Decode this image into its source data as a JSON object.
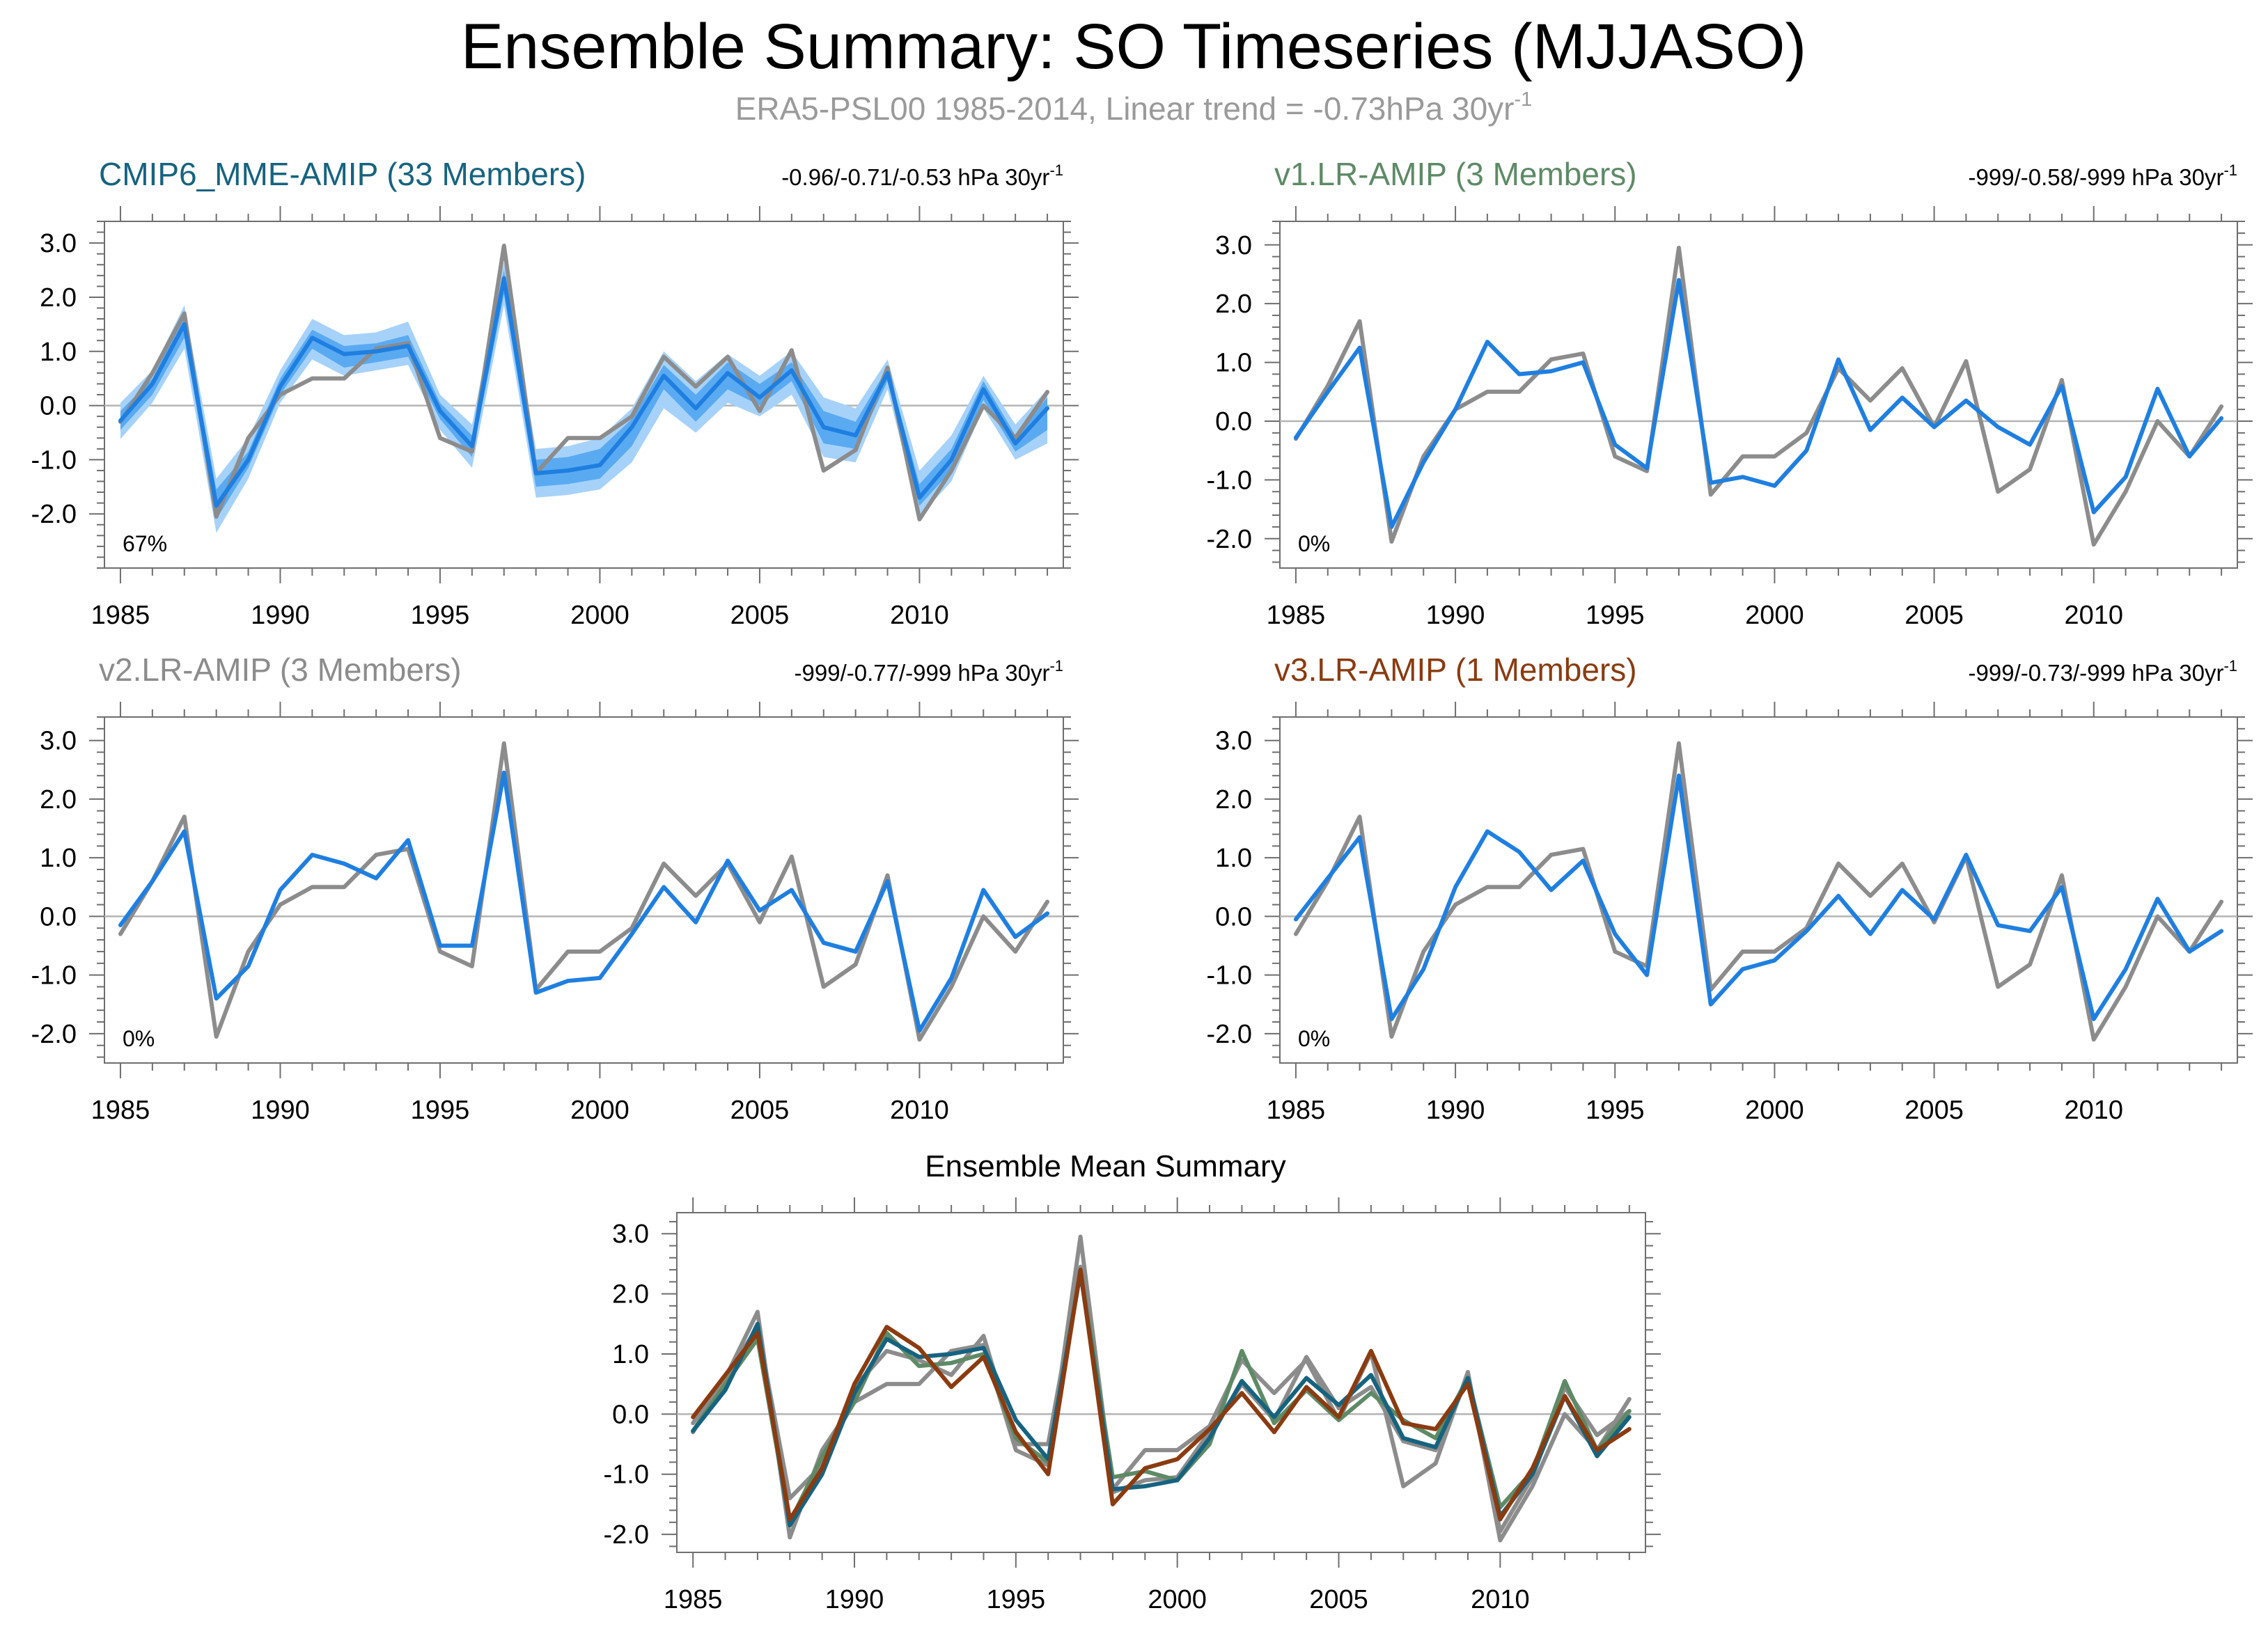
{
  "title": "Ensemble Summary: SO Timeseries (MJJASO)",
  "subtitle": {
    "prefix": "ERA5-PSL00 1985-2014, Linear trend = -0.73hPa 30yr",
    "sup": "-1"
  },
  "colors": {
    "obs": "#8c8c8c",
    "model": "#1f7fe0",
    "band_outer": "#a6d2fa",
    "band_inner": "#5aaaf2",
    "zero_line": "#b4b4b4",
    "frame": "#6e6e6e",
    "cmip6": "#16637f",
    "v1": "#5e8a66",
    "v2": "#8c8c8c",
    "v3": "#8a3b10",
    "subtitle": "#9a9a9a"
  },
  "chart_data": [
    {
      "type": "line",
      "id": "cmip6",
      "title": "CMIP6_MME-AMIP (33 Members)",
      "title_color_key": "cmip6",
      "trend": {
        "text": "-0.96/-0.71/-0.53 hPa 30yr",
        "sup": "-1"
      },
      "pct_label": "67%",
      "x": [
        1985,
        1986,
        1987,
        1988,
        1989,
        1990,
        1991,
        1992,
        1993,
        1994,
        1995,
        1996,
        1997,
        1998,
        1999,
        2000,
        2001,
        2002,
        2003,
        2004,
        2005,
        2006,
        2007,
        2008,
        2009,
        2010,
        2011,
        2012,
        2013,
        2014
      ],
      "xticks": [
        1985,
        1990,
        1995,
        2000,
        2005,
        2010
      ],
      "yticks": [
        -2.0,
        -1.0,
        0.0,
        1.0,
        2.0,
        3.0
      ],
      "ytick_labels": [
        "-2.0",
        "-1.0",
        "0.0",
        "1.0",
        "2.0",
        "3.0"
      ],
      "ylim": [
        -3.0,
        3.4
      ],
      "has_band": true,
      "band_outer_low": [
        -0.62,
        0.05,
        1.05,
        -2.35,
        -1.35,
        0.05,
        0.85,
        0.55,
        0.65,
        0.75,
        -0.45,
        -1.15,
        1.85,
        -1.7,
        -1.65,
        -1.55,
        -1.05,
        -0.05,
        -0.5,
        0.05,
        -0.2,
        0.2,
        -0.95,
        -1.05,
        0.3,
        -2.05,
        -1.4,
        -0.05,
        -1.0,
        -0.7
      ],
      "band_outer_high": [
        0.05,
        0.65,
        1.85,
        -1.35,
        -0.6,
        0.65,
        1.6,
        1.3,
        1.35,
        1.55,
        0.2,
        -0.35,
        2.65,
        -0.8,
        -0.75,
        -0.6,
        -0.05,
        1.0,
        0.45,
        0.95,
        0.55,
        1.0,
        0.15,
        -0.05,
        0.85,
        -1.2,
        -0.55,
        0.55,
        -0.35,
        0.3
      ],
      "band_inner_low": [
        -0.45,
        0.2,
        1.25,
        -2.1,
        -1.15,
        0.2,
        1.05,
        0.7,
        0.8,
        0.9,
        -0.25,
        -0.95,
        2.05,
        -1.5,
        -1.45,
        -1.35,
        -0.75,
        0.3,
        -0.3,
        0.3,
        0.0,
        0.45,
        -0.7,
        -0.8,
        0.45,
        -1.85,
        -1.2,
        0.1,
        -0.85,
        -0.45
      ],
      "band_inner_high": [
        -0.1,
        0.5,
        1.65,
        -1.55,
        -0.85,
        0.5,
        1.4,
        1.1,
        1.15,
        1.3,
        0.05,
        -0.55,
        2.5,
        -1.0,
        -0.95,
        -0.8,
        -0.25,
        0.75,
        0.2,
        0.8,
        0.4,
        0.8,
        -0.1,
        -0.3,
        0.7,
        -1.45,
        -0.8,
        0.45,
        -0.55,
        0.15
      ],
      "series": [
        {
          "name": "ERA5-PSL00",
          "color_key": "obs",
          "values": [
            -0.3,
            0.6,
            1.7,
            -2.05,
            -0.6,
            0.2,
            0.5,
            0.5,
            1.05,
            1.15,
            -0.6,
            -0.85,
            2.95,
            -1.25,
            -0.6,
            -0.6,
            -0.2,
            0.9,
            0.35,
            0.9,
            -0.1,
            1.02,
            -1.2,
            -0.82,
            0.7,
            -2.1,
            -1.2,
            0.0,
            -0.6,
            0.25
          ]
        },
        {
          "name": "CMIP6_MME-AMIP",
          "color_key": "model",
          "values": [
            -0.28,
            0.4,
            1.5,
            -1.85,
            -1.0,
            0.35,
            1.25,
            0.95,
            1.0,
            1.1,
            -0.1,
            -0.75,
            2.35,
            -1.25,
            -1.2,
            -1.1,
            -0.4,
            0.55,
            -0.05,
            0.6,
            0.15,
            0.65,
            -0.4,
            -0.55,
            0.6,
            -1.7,
            -1.0,
            0.3,
            -0.7,
            -0.05
          ]
        }
      ]
    },
    {
      "type": "line",
      "id": "v1",
      "title": "v1.LR-AMIP (3 Members)",
      "title_color_key": "v1",
      "trend": {
        "text": "-999/-0.58/-999 hPa 30yr",
        "sup": "-1"
      },
      "pct_label": "0%",
      "x": [
        1985,
        1986,
        1987,
        1988,
        1989,
        1990,
        1991,
        1992,
        1993,
        1994,
        1995,
        1996,
        1997,
        1998,
        1999,
        2000,
        2001,
        2002,
        2003,
        2004,
        2005,
        2006,
        2007,
        2008,
        2009,
        2010,
        2011,
        2012,
        2013,
        2014
      ],
      "xticks": [
        1985,
        1990,
        1995,
        2000,
        2005,
        2010
      ],
      "yticks": [
        -2.0,
        -1.0,
        0.0,
        1.0,
        2.0,
        3.0
      ],
      "ytick_labels": [
        "-2.0",
        "-1.0",
        "0.0",
        "1.0",
        "2.0",
        "3.0"
      ],
      "ylim": [
        -2.5,
        3.4
      ],
      "has_band": false,
      "series": [
        {
          "name": "ERA5-PSL00",
          "color_key": "obs",
          "values": [
            -0.3,
            0.6,
            1.7,
            -2.05,
            -0.6,
            0.2,
            0.5,
            0.5,
            1.05,
            1.15,
            -0.6,
            -0.85,
            2.95,
            -1.25,
            -0.6,
            -0.6,
            -0.2,
            0.9,
            0.35,
            0.9,
            -0.1,
            1.02,
            -1.2,
            -0.82,
            0.7,
            -2.1,
            -1.2,
            0.0,
            -0.6,
            0.25
          ]
        },
        {
          "name": "v1.LR-AMIP",
          "color_key": "model",
          "values": [
            -0.28,
            0.5,
            1.25,
            -1.8,
            -0.7,
            0.2,
            1.35,
            0.8,
            0.85,
            1.0,
            -0.4,
            -0.8,
            2.4,
            -1.05,
            -0.95,
            -1.1,
            -0.5,
            1.05,
            -0.15,
            0.4,
            -0.1,
            0.35,
            -0.1,
            -0.4,
            0.6,
            -1.55,
            -0.95,
            0.55,
            -0.6,
            0.05
          ]
        }
      ]
    },
    {
      "type": "line",
      "id": "v2",
      "title": "v2.LR-AMIP (3 Members)",
      "title_color_key": "v2",
      "trend": {
        "text": "-999/-0.77/-999 hPa 30yr",
        "sup": "-1"
      },
      "pct_label": "0%",
      "x": [
        1985,
        1986,
        1987,
        1988,
        1989,
        1990,
        1991,
        1992,
        1993,
        1994,
        1995,
        1996,
        1997,
        1998,
        1999,
        2000,
        2001,
        2002,
        2003,
        2004,
        2005,
        2006,
        2007,
        2008,
        2009,
        2010,
        2011,
        2012,
        2013,
        2014
      ],
      "xticks": [
        1985,
        1990,
        1995,
        2000,
        2005,
        2010
      ],
      "yticks": [
        -2.0,
        -1.0,
        0.0,
        1.0,
        2.0,
        3.0
      ],
      "ytick_labels": [
        "-2.0",
        "-1.0",
        "0.0",
        "1.0",
        "2.0",
        "3.0"
      ],
      "ylim": [
        -2.5,
        3.4
      ],
      "has_band": false,
      "series": [
        {
          "name": "ERA5-PSL00",
          "color_key": "obs",
          "values": [
            -0.3,
            0.6,
            1.7,
            -2.05,
            -0.6,
            0.2,
            0.5,
            0.5,
            1.05,
            1.15,
            -0.6,
            -0.85,
            2.95,
            -1.25,
            -0.6,
            -0.6,
            -0.2,
            0.9,
            0.35,
            0.9,
            -0.1,
            1.02,
            -1.2,
            -0.82,
            0.7,
            -2.1,
            -1.2,
            0.0,
            -0.6,
            0.25
          ]
        },
        {
          "name": "v2.LR-AMIP",
          "color_key": "model",
          "values": [
            -0.15,
            0.6,
            1.45,
            -1.4,
            -0.85,
            0.45,
            1.05,
            0.9,
            0.65,
            1.3,
            -0.5,
            -0.5,
            2.45,
            -1.3,
            -1.1,
            -1.05,
            -0.3,
            0.5,
            -0.1,
            0.95,
            0.1,
            0.45,
            -0.45,
            -0.6,
            0.6,
            -1.95,
            -1.05,
            0.45,
            -0.35,
            0.05
          ]
        }
      ]
    },
    {
      "type": "line",
      "id": "v3",
      "title": "v3.LR-AMIP (1 Members)",
      "title_color_key": "v3",
      "trend": {
        "text": "-999/-0.73/-999 hPa 30yr",
        "sup": "-1"
      },
      "pct_label": "0%",
      "x": [
        1985,
        1986,
        1987,
        1988,
        1989,
        1990,
        1991,
        1992,
        1993,
        1994,
        1995,
        1996,
        1997,
        1998,
        1999,
        2000,
        2001,
        2002,
        2003,
        2004,
        2005,
        2006,
        2007,
        2008,
        2009,
        2010,
        2011,
        2012,
        2013,
        2014
      ],
      "xticks": [
        1985,
        1990,
        1995,
        2000,
        2005,
        2010
      ],
      "yticks": [
        -2.0,
        -1.0,
        0.0,
        1.0,
        2.0,
        3.0
      ],
      "ytick_labels": [
        "-2.0",
        "-1.0",
        "0.0",
        "1.0",
        "2.0",
        "3.0"
      ],
      "ylim": [
        -2.5,
        3.4
      ],
      "has_band": false,
      "series": [
        {
          "name": "ERA5-PSL00",
          "color_key": "obs",
          "values": [
            -0.3,
            0.6,
            1.7,
            -2.05,
            -0.6,
            0.2,
            0.5,
            0.5,
            1.05,
            1.15,
            -0.6,
            -0.85,
            2.95,
            -1.25,
            -0.6,
            -0.6,
            -0.2,
            0.9,
            0.35,
            0.9,
            -0.1,
            1.02,
            -1.2,
            -0.82,
            0.7,
            -2.1,
            -1.2,
            0.0,
            -0.6,
            0.25
          ]
        },
        {
          "name": "v3.LR-AMIP",
          "color_key": "model",
          "values": [
            -0.05,
            0.65,
            1.35,
            -1.75,
            -0.9,
            0.5,
            1.45,
            1.1,
            0.45,
            0.95,
            -0.3,
            -1.0,
            2.4,
            -1.5,
            -0.9,
            -0.75,
            -0.25,
            0.35,
            -0.3,
            0.45,
            -0.05,
            1.05,
            -0.15,
            -0.25,
            0.5,
            -1.75,
            -0.9,
            0.3,
            -0.6,
            -0.25
          ]
        }
      ]
    },
    {
      "type": "line",
      "id": "mean",
      "title": "Ensemble Mean Summary",
      "x": [
        1985,
        1986,
        1987,
        1988,
        1989,
        1990,
        1991,
        1992,
        1993,
        1994,
        1995,
        1996,
        1997,
        1998,
        1999,
        2000,
        2001,
        2002,
        2003,
        2004,
        2005,
        2006,
        2007,
        2008,
        2009,
        2010,
        2011,
        2012,
        2013,
        2014
      ],
      "xticks": [
        1985,
        1990,
        1995,
        2000,
        2005,
        2010
      ],
      "yticks": [
        -2.0,
        -1.0,
        0.0,
        1.0,
        2.0,
        3.0
      ],
      "ytick_labels": [
        "-2.0",
        "-1.0",
        "0.0",
        "1.0",
        "2.0",
        "3.0"
      ],
      "ylim": [
        -2.3,
        3.35
      ],
      "has_band": false,
      "series": [
        {
          "name": "ERA5-PSL00",
          "color_key": "obs",
          "values": [
            -0.3,
            0.6,
            1.7,
            -2.05,
            -0.6,
            0.2,
            0.5,
            0.5,
            1.05,
            1.15,
            -0.6,
            -0.85,
            2.95,
            -1.25,
            -0.6,
            -0.6,
            -0.2,
            0.9,
            0.35,
            0.9,
            -0.1,
            1.02,
            -1.2,
            -0.82,
            0.7,
            -2.1,
            -1.2,
            0.0,
            -0.6,
            0.25
          ]
        },
        {
          "name": "v2.LR-AMIP",
          "color_key": "v2",
          "values": [
            -0.15,
            0.6,
            1.45,
            -1.4,
            -0.85,
            0.45,
            1.05,
            0.9,
            0.65,
            1.3,
            -0.5,
            -0.5,
            2.45,
            -1.3,
            -1.1,
            -1.05,
            -0.3,
            0.5,
            -0.1,
            0.95,
            0.1,
            0.45,
            -0.45,
            -0.6,
            0.6,
            -1.95,
            -1.05,
            0.45,
            -0.35,
            0.05
          ]
        },
        {
          "name": "v1.LR-AMIP",
          "color_key": "v1",
          "values": [
            -0.28,
            0.5,
            1.25,
            -1.8,
            -0.7,
            0.2,
            1.35,
            0.8,
            0.85,
            1.0,
            -0.4,
            -0.8,
            2.4,
            -1.05,
            -0.95,
            -1.1,
            -0.5,
            1.05,
            -0.15,
            0.4,
            -0.1,
            0.35,
            -0.1,
            -0.4,
            0.6,
            -1.55,
            -0.95,
            0.55,
            -0.6,
            0.05
          ]
        },
        {
          "name": "CMIP6_MME-AMIP",
          "color_key": "cmip6",
          "values": [
            -0.28,
            0.4,
            1.5,
            -1.85,
            -1.0,
            0.35,
            1.25,
            0.95,
            1.0,
            1.1,
            -0.1,
            -0.75,
            2.35,
            -1.25,
            -1.2,
            -1.1,
            -0.4,
            0.55,
            -0.05,
            0.6,
            0.15,
            0.65,
            -0.4,
            -0.55,
            0.6,
            -1.7,
            -1.0,
            0.3,
            -0.7,
            -0.05
          ]
        },
        {
          "name": "v3.LR-AMIP",
          "color_key": "v3",
          "values": [
            -0.05,
            0.65,
            1.35,
            -1.75,
            -0.9,
            0.5,
            1.45,
            1.1,
            0.45,
            0.95,
            -0.3,
            -1.0,
            2.4,
            -1.5,
            -0.9,
            -0.75,
            -0.25,
            0.35,
            -0.3,
            0.45,
            -0.05,
            1.05,
            -0.15,
            -0.25,
            0.5,
            -1.75,
            -0.9,
            0.3,
            -0.6,
            -0.25
          ]
        }
      ]
    }
  ]
}
